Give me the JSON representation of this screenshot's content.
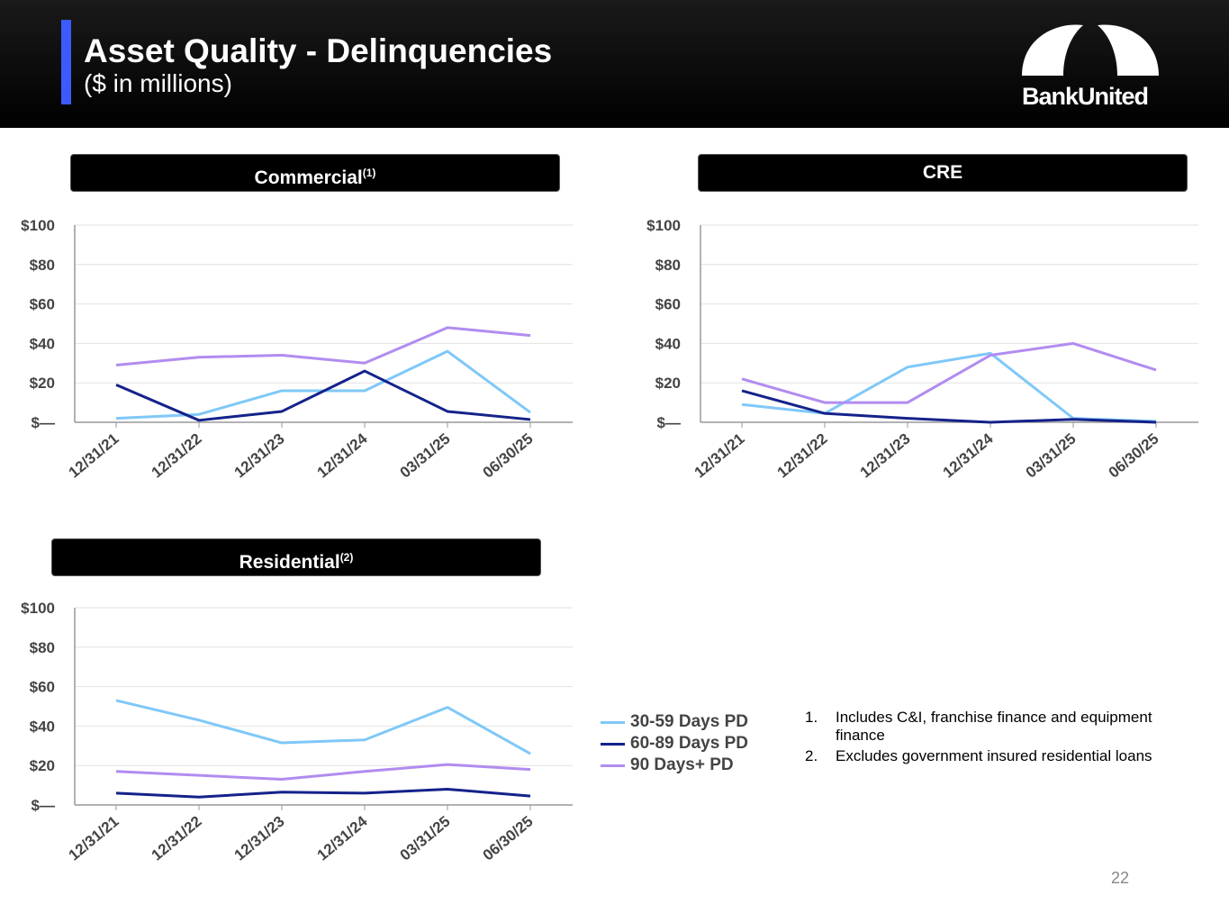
{
  "header": {
    "title": "Asset Quality - Delinquencies",
    "subtitle": "($ in millions)",
    "logo_text": "BankUnited"
  },
  "colors": {
    "30-59": "#7fc8f8",
    "60-89": "#14228a",
    "90+": "#b18cf0",
    "accent": "#3b5bff"
  },
  "legend": [
    {
      "key": "30-59",
      "label": "30-59 Days PD"
    },
    {
      "key": "60-89",
      "label": "60-89 Days PD"
    },
    {
      "key": "90+",
      "label": "90 Days+ PD"
    }
  ],
  "notes": [
    {
      "num": "1.",
      "text": "Includes C&I, franchise finance and equipment finance"
    },
    {
      "num": "2.",
      "text": "Excludes government insured residential loans"
    }
  ],
  "page_number": "22",
  "chart_data": [
    {
      "type": "line",
      "title": "Commercial",
      "title_sup": "(1)",
      "categories": [
        "12/31/21",
        "12/31/22",
        "12/31/23",
        "12/31/24",
        "03/31/25",
        "06/30/25"
      ],
      "ylim": [
        0,
        100
      ],
      "yticks": [
        "$—",
        "$20",
        "$40",
        "$60",
        "$80",
        "$100"
      ],
      "grid": true,
      "series": [
        {
          "name": "30-59 Days PD",
          "key": "30-59",
          "values": [
            2,
            4,
            16,
            16,
            36,
            5
          ]
        },
        {
          "name": "60-89 Days PD",
          "key": "60-89",
          "values": [
            19,
            1,
            5.5,
            26,
            5.5,
            1.4
          ]
        },
        {
          "name": "90 Days+ PD",
          "key": "90+",
          "values": [
            29,
            33,
            34,
            30,
            48,
            44
          ]
        }
      ]
    },
    {
      "type": "line",
      "title": "CRE",
      "title_sup": "",
      "categories": [
        "12/31/21",
        "12/31/22",
        "12/31/23",
        "12/31/24",
        "03/31/25",
        "06/30/25"
      ],
      "ylim": [
        0,
        100
      ],
      "yticks": [
        "$—",
        "$20",
        "$40",
        "$60",
        "$80",
        "$100"
      ],
      "grid": true,
      "series": [
        {
          "name": "30-59 Days PD",
          "key": "30-59",
          "values": [
            9,
            4.5,
            28,
            35,
            2,
            0.5
          ]
        },
        {
          "name": "60-89 Days PD",
          "key": "60-89",
          "values": [
            16,
            4.5,
            2,
            0,
            1.5,
            0
          ]
        },
        {
          "name": "90 Days+ PD",
          "key": "90+",
          "values": [
            22,
            10,
            10,
            34,
            40,
            26.5
          ]
        }
      ]
    },
    {
      "type": "line",
      "title": "Residential",
      "title_sup": "(2)",
      "categories": [
        "12/31/21",
        "12/31/22",
        "12/31/23",
        "12/31/24",
        "03/31/25",
        "06/30/25"
      ],
      "ylim": [
        0,
        100
      ],
      "yticks": [
        "$—",
        "$20",
        "$40",
        "$60",
        "$80",
        "$100"
      ],
      "grid": true,
      "series": [
        {
          "name": "30-59 Days PD",
          "key": "30-59",
          "values": [
            53,
            43,
            31.5,
            33,
            49.5,
            26
          ]
        },
        {
          "name": "60-89 Days PD",
          "key": "60-89",
          "values": [
            6,
            4,
            6.5,
            6,
            8,
            4.5
          ]
        },
        {
          "name": "90 Days+ PD",
          "key": "90+",
          "values": [
            17,
            15,
            13,
            17,
            20.5,
            18
          ]
        }
      ]
    }
  ]
}
